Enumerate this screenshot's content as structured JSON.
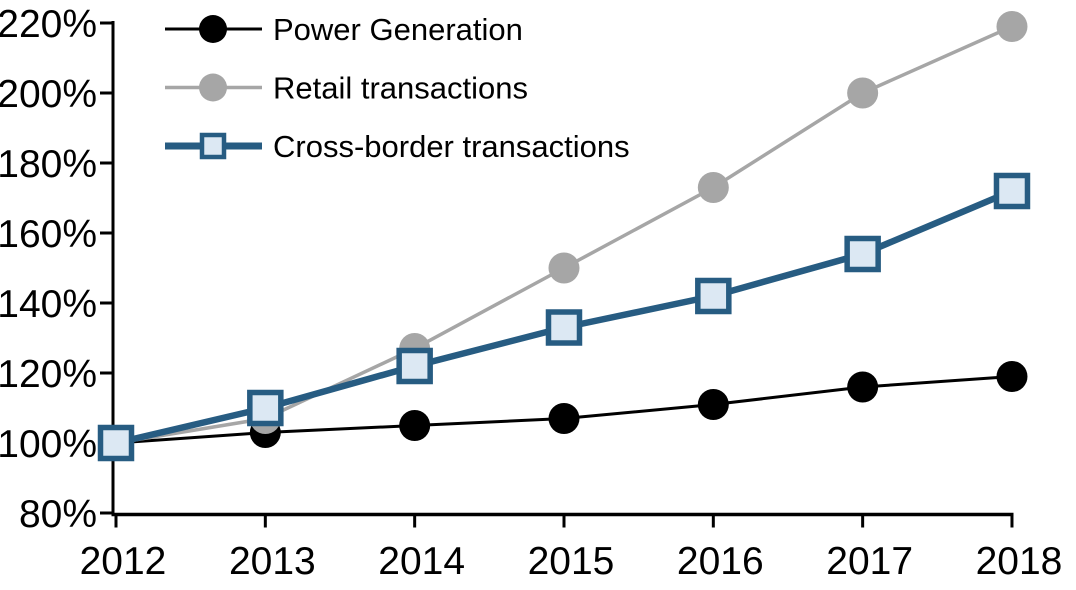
{
  "chart_data": {
    "type": "line",
    "title": "",
    "xlabel": "",
    "ylabel": "",
    "x": [
      2012,
      2013,
      2014,
      2015,
      2016,
      2017,
      2018
    ],
    "x_tick_labels": [
      "2012",
      "2013",
      "2014",
      "2015",
      "2016",
      "2017",
      "2018"
    ],
    "y_ticks": [
      80,
      100,
      120,
      140,
      160,
      180,
      200,
      220
    ],
    "y_tick_labels": [
      "80%",
      "100%",
      "120%",
      "140%",
      "160%",
      "180%",
      "200%",
      "220%"
    ],
    "ylim": [
      80,
      220
    ],
    "grid": false,
    "legend_position": "top-left",
    "axis_color": "#000000",
    "background_color": "#ffffff",
    "series": [
      {
        "name": "Power Generation",
        "values": [
          100,
          103,
          105,
          107,
          111,
          116,
          119
        ],
        "color": "#000000",
        "marker": "circle",
        "marker_fill": "#000000",
        "line_width": 3
      },
      {
        "name": "Retail transactions",
        "values": [
          100,
          107,
          127,
          150,
          173,
          200,
          219
        ],
        "color": "#a6a6a6",
        "marker": "circle",
        "marker_fill": "#a6a6a6",
        "line_width": 3.5
      },
      {
        "name": "Cross-border transactions",
        "values": [
          100,
          110,
          122,
          133,
          142,
          154,
          172
        ],
        "color": "#275c82",
        "marker": "square",
        "marker_fill": "#dce8f3",
        "line_width": 6.5
      }
    ]
  }
}
